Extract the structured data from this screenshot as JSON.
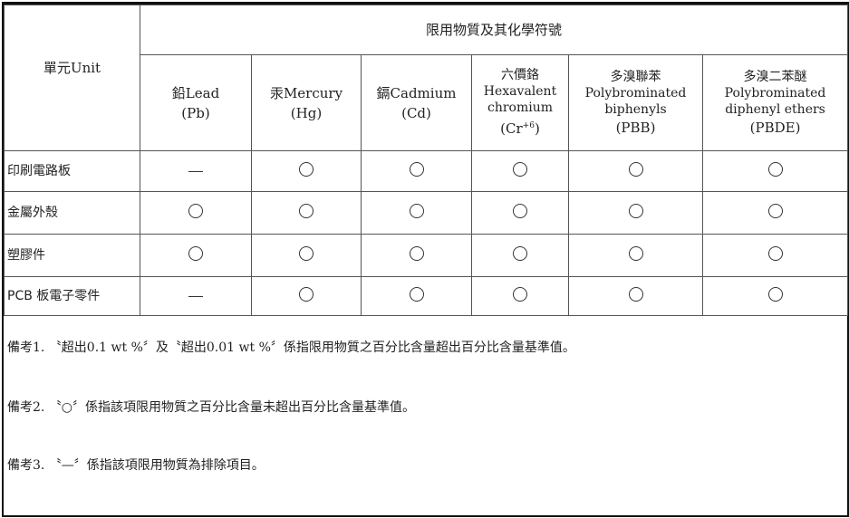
{
  "header": {
    "unit_label": "單元Unit",
    "group_title": "限用物質及其化學符號",
    "columns": [
      {
        "zh": "",
        "name": "鉛Lead",
        "symbol": "(Pb)"
      },
      {
        "zh": "",
        "name": "汞Mercury",
        "symbol": "(Hg)"
      },
      {
        "zh": "",
        "name": "鎘Cadmium",
        "symbol": "(Cd)"
      },
      {
        "zh": "六價鉻",
        "name": "Hexavalent chromium",
        "symbol": "(Cr+6)"
      },
      {
        "zh": "多溴聯苯",
        "name": "Polybrominated biphenyls",
        "symbol": "(PBB)"
      },
      {
        "zh": "多溴二苯醚",
        "name": "Polybrominated diphenyl ethers",
        "symbol": "(PBDE)"
      }
    ]
  },
  "rows": [
    {
      "label": "印刷電路板",
      "values": [
        "dash",
        "circle",
        "circle",
        "circle",
        "circle",
        "circle"
      ]
    },
    {
      "label": "金屬外殼",
      "values": [
        "circle",
        "circle",
        "circle",
        "circle",
        "circle",
        "circle"
      ]
    },
    {
      "label": "塑膠件",
      "values": [
        "circle",
        "circle",
        "circle",
        "circle",
        "circle",
        "circle"
      ]
    },
    {
      "label": "PCB 板電子零件",
      "values": [
        "dash",
        "circle",
        "circle",
        "circle",
        "circle",
        "circle"
      ]
    }
  ],
  "notes": [
    "備考1. 〝超出0.1 wt %〞及〝超出0.01 wt %〞係指限用物質之百分比含量超出百分比含量基準值。",
    "備考2. 〝○〞係指該項限用物質之百分比含量未超出百分比含量基準值。",
    "備考3. 〝—〞係指該項限用物質為排除項目。"
  ]
}
